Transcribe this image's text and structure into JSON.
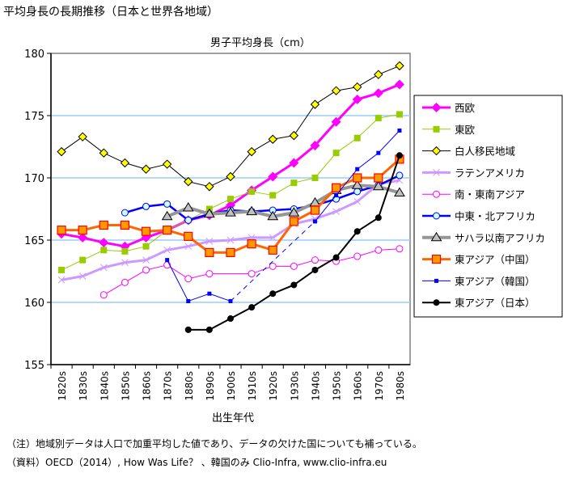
{
  "title": "平均身長の長期推移（日本と世界各地域）",
  "notes": [
    "（注）地域別データは人口で加重平均した値であり、データの欠けた国についても補っている。",
    "（資料）OECD（2014）, How Was Life？ 、韓国のみ Clio-Infra, www.clio-infra.eu"
  ],
  "chart_data": {
    "type": "line",
    "title": "男子平均身長（cm）",
    "xlabel": "出生年代",
    "ylabel": "",
    "ylim": [
      155,
      180
    ],
    "yticks": [
      155,
      160,
      165,
      170,
      175,
      180
    ],
    "grid": true,
    "gridlines": [
      160,
      165,
      170,
      175
    ],
    "grid_color": "#99CCFF",
    "legend_position": "right",
    "categories": [
      "1820s",
      "1830s",
      "1840s",
      "1850s",
      "1860s",
      "1870s",
      "1880s",
      "1890s",
      "1900s",
      "1910s",
      "1920s",
      "1930s",
      "1940s",
      "1950s",
      "1960s",
      "1970s",
      "1980s"
    ],
    "series": [
      {
        "name": "西欧",
        "color": "#FF00FF",
        "marker": "diamond",
        "values": [
          165.5,
          165.2,
          164.8,
          164.5,
          165.2,
          165.8,
          166.6,
          167.0,
          167.8,
          169.0,
          170.1,
          171.2,
          172.6,
          174.5,
          176.3,
          176.8,
          177.5
        ]
      },
      {
        "name": "東欧",
        "color": "#99CC00",
        "marker": "square",
        "values": [
          162.6,
          163.4,
          164.2,
          164.1,
          164.5,
          165.8,
          166.6,
          167.5,
          168.3,
          168.9,
          168.6,
          169.6,
          170.0,
          172.0,
          173.2,
          174.8,
          175.1
        ]
      },
      {
        "name": "白人移民地域",
        "color": "#000000",
        "marker": "diamond-yellow",
        "values": [
          172.1,
          173.3,
          172.0,
          171.2,
          170.7,
          171.1,
          169.7,
          169.3,
          170.1,
          172.1,
          173.1,
          173.4,
          175.9,
          177.0,
          177.3,
          178.3,
          179.0
        ]
      },
      {
        "name": "ラテンアメリカ",
        "color": "#CC99FF",
        "marker": "x",
        "values": [
          161.8,
          162.1,
          162.8,
          163.2,
          163.4,
          164.2,
          164.5,
          164.9,
          165.0,
          165.2,
          165.2,
          166.3,
          166.7,
          167.3,
          168.1,
          169.5,
          169.8
        ]
      },
      {
        "name": "南・東南アジア",
        "color": "#FF00FF",
        "marker": "circle-open",
        "values": [
          null,
          null,
          160.6,
          161.6,
          162.6,
          163.0,
          161.9,
          162.3,
          null,
          162.3,
          162.9,
          162.9,
          163.4,
          163.3,
          163.7,
          164.2,
          164.3
        ]
      },
      {
        "name": "中東・北アフリカ",
        "color": "#0000FF",
        "marker": "circle-cyan",
        "values": [
          null,
          null,
          null,
          167.2,
          167.7,
          167.9,
          166.6,
          167.1,
          167.4,
          167.3,
          167.4,
          167.5,
          167.8,
          168.3,
          168.9,
          169.4,
          170.2
        ]
      },
      {
        "name": "サハラ以南アフリカ",
        "color": "#969696",
        "marker": "triangle",
        "values": [
          null,
          null,
          null,
          null,
          null,
          166.9,
          167.6,
          167.1,
          167.2,
          167.3,
          166.9,
          167.2,
          168.0,
          169.0,
          169.4,
          169.3,
          168.8
        ]
      },
      {
        "name": "東アジア（中国）",
        "color": "#FF6600",
        "marker": "square-orange",
        "values": [
          165.8,
          165.8,
          166.2,
          166.2,
          165.7,
          165.8,
          165.3,
          164.0,
          164.0,
          164.7,
          164.2,
          166.5,
          167.4,
          169.2,
          170.0,
          170.0,
          171.5
        ]
      },
      {
        "name": "東アジア（韓国）",
        "color": "#0000FF",
        "marker": "square-small",
        "values": [
          null,
          null,
          null,
          null,
          null,
          163.4,
          160.1,
          160.7,
          160.1,
          null,
          null,
          null,
          166.5,
          168.6,
          170.7,
          172.0,
          173.8
        ]
      },
      {
        "name": "東アジア（日本）",
        "color": "#000000",
        "marker": "circle-black",
        "values": [
          null,
          null,
          null,
          null,
          null,
          null,
          157.8,
          157.8,
          158.7,
          159.6,
          160.7,
          161.4,
          162.6,
          163.6,
          165.7,
          166.8,
          171.8
        ]
      }
    ]
  }
}
